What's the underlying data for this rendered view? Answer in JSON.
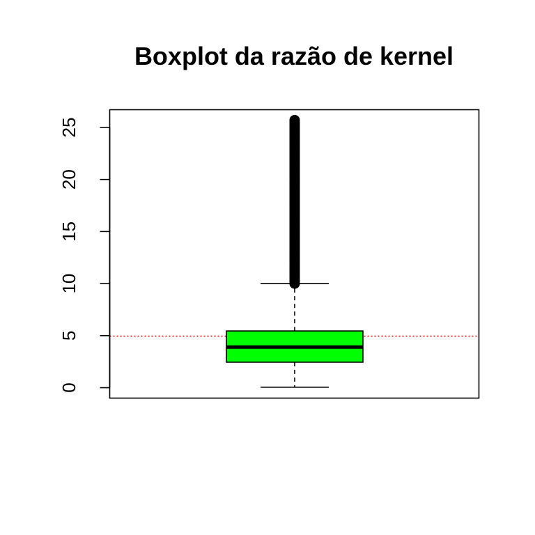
{
  "chart_data": {
    "type": "boxplot",
    "title": "Boxplot da razão de kernel",
    "xlabel": "",
    "ylabel": "",
    "ylim": [
      -1,
      26.7
    ],
    "y_ticks": [
      0,
      5,
      10,
      15,
      20,
      25
    ],
    "y_tick_labels": [
      "0",
      "5",
      "10",
      "15",
      "20",
      "25"
    ],
    "box": {
      "whisker_low": 0.05,
      "q1": 2.45,
      "median": 3.9,
      "q3": 5.45,
      "whisker_high": 10.0,
      "outliers_range": [
        10.0,
        25.7
      ],
      "fill_color": "#00ff00"
    },
    "reference_line": {
      "y": 4.95,
      "color": "#ff0000",
      "style": "dotted"
    },
    "grid": false,
    "legend": "none"
  }
}
